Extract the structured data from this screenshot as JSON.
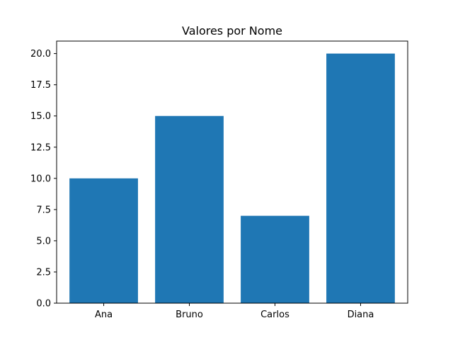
{
  "chart_data": {
    "type": "bar",
    "title": "Valores por Nome",
    "xlabel": "",
    "ylabel": "",
    "categories": [
      "Ana",
      "Bruno",
      "Carlos",
      "Diana"
    ],
    "values": [
      10,
      15,
      7,
      20
    ],
    "ylim": [
      0,
      21
    ],
    "yticks": [
      "0.0",
      "2.5",
      "5.0",
      "7.5",
      "10.0",
      "12.5",
      "15.0",
      "17.5",
      "20.0"
    ],
    "grid": false,
    "bar_color": "#1f77b4"
  }
}
